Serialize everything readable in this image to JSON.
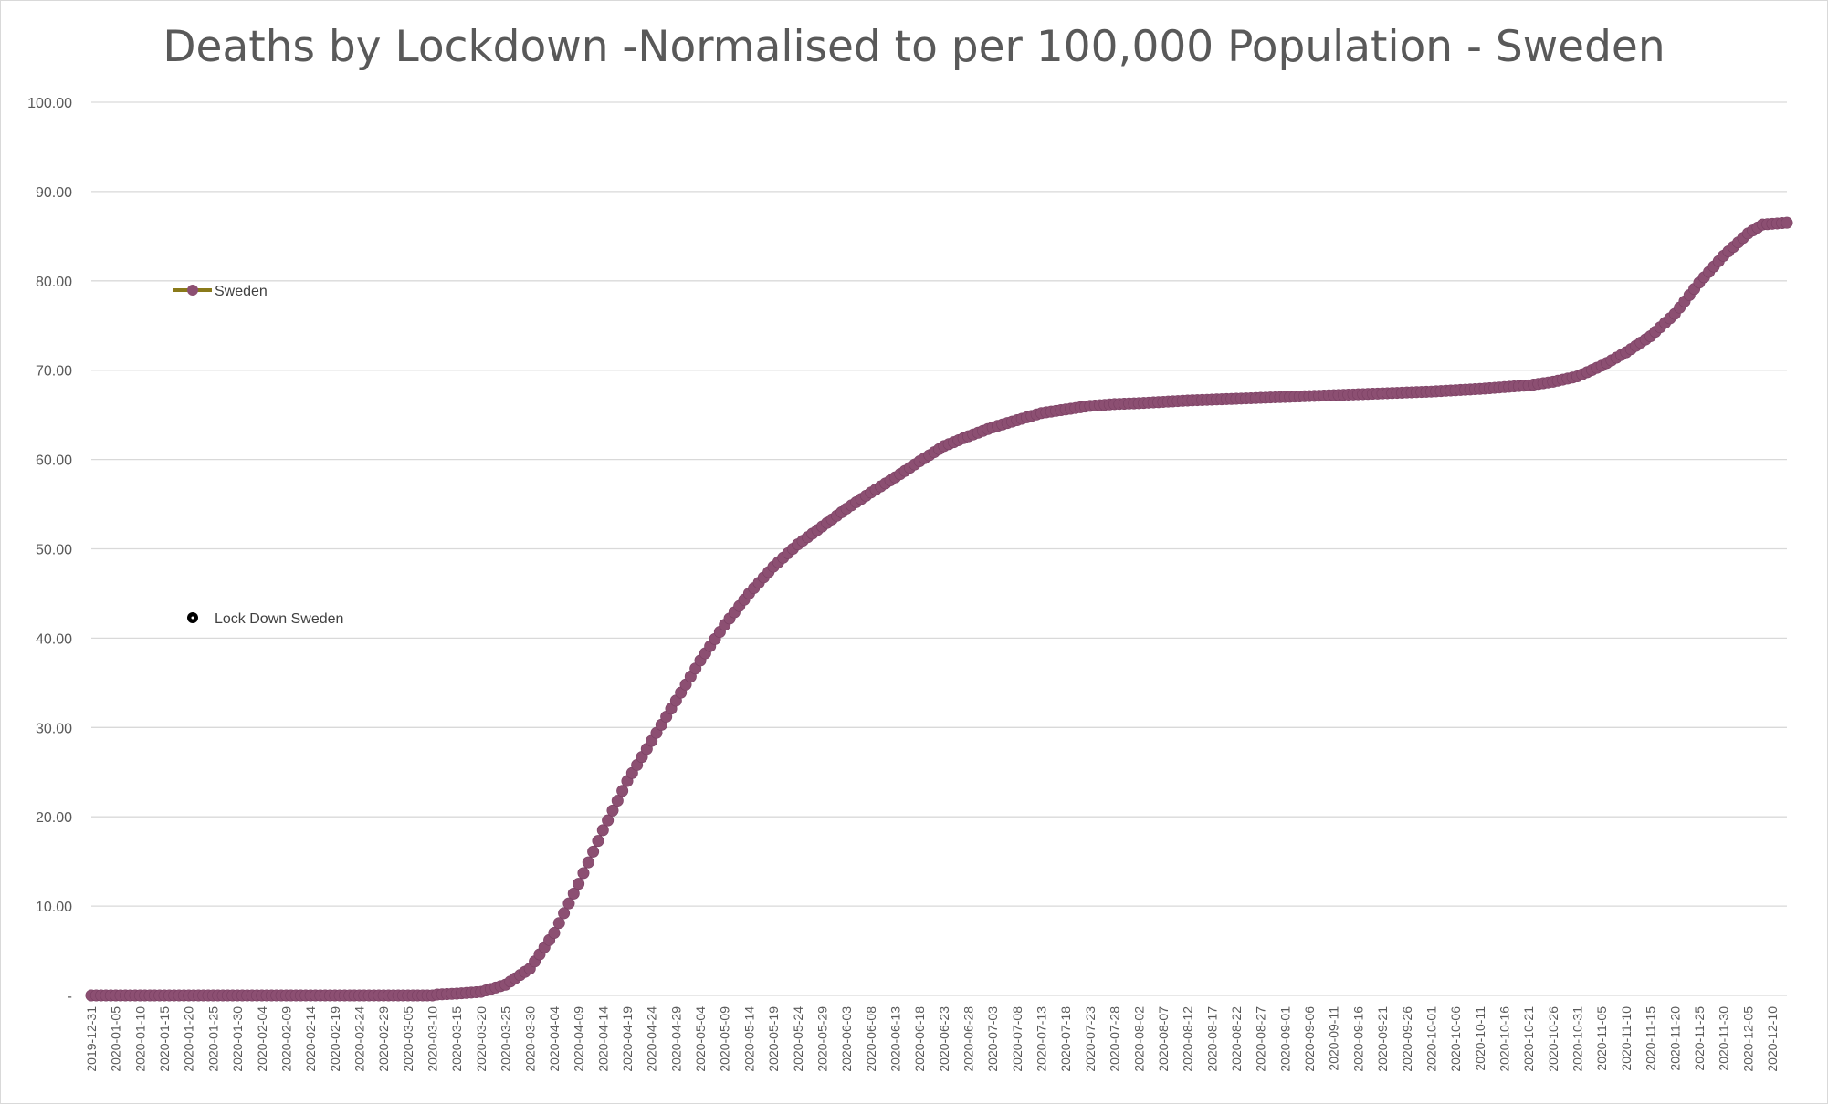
{
  "colors": {
    "series_marker": "#8c4f72",
    "legend_line": "#8a7a1a",
    "lockdown_marker": "#000000",
    "gridline": "#d9d9d9",
    "text": "#595959"
  },
  "chart_data": {
    "type": "line",
    "title": "Deaths by Lockdown -Normalised to per 100,000 Population - Sweden",
    "xlabel": "",
    "ylabel": "",
    "ylim": [
      0,
      100
    ],
    "y_ticks": [
      {
        "value": 0,
        "label": "-"
      },
      {
        "value": 10,
        "label": "10.00"
      },
      {
        "value": 20,
        "label": "20.00"
      },
      {
        "value": 30,
        "label": "30.00"
      },
      {
        "value": 40,
        "label": "40.00"
      },
      {
        "value": 50,
        "label": "50.00"
      },
      {
        "value": 60,
        "label": "60.00"
      },
      {
        "value": 70,
        "label": "70.00"
      },
      {
        "value": 80,
        "label": "80.00"
      },
      {
        "value": 90,
        "label": "90.00"
      },
      {
        "value": 100,
        "label": "100.00"
      }
    ],
    "grid": true,
    "x_start": "2019-12-31",
    "x_end": "2020-12-13",
    "x_tick_labels": [
      "2019-12-31",
      "2020-01-05",
      "2020-01-10",
      "2020-01-15",
      "2020-01-20",
      "2020-01-25",
      "2020-01-30",
      "2020-02-04",
      "2020-02-09",
      "2020-02-14",
      "2020-02-19",
      "2020-02-24",
      "2020-02-29",
      "2020-03-05",
      "2020-03-10",
      "2020-03-15",
      "2020-03-20",
      "2020-03-25",
      "2020-03-30",
      "2020-04-04",
      "2020-04-09",
      "2020-04-14",
      "2020-04-19",
      "2020-04-24",
      "2020-04-29",
      "2020-05-04",
      "2020-05-09",
      "2020-05-14",
      "2020-05-19",
      "2020-05-24",
      "2020-05-29",
      "2020-06-03",
      "2020-06-08",
      "2020-06-13",
      "2020-06-18",
      "2020-06-23",
      "2020-06-28",
      "2020-07-03",
      "2020-07-08",
      "2020-07-13",
      "2020-07-18",
      "2020-07-23",
      "2020-07-28",
      "2020-08-02",
      "2020-08-07",
      "2020-08-12",
      "2020-08-17",
      "2020-08-22",
      "2020-08-27",
      "2020-09-01",
      "2020-09-06",
      "2020-09-11",
      "2020-09-16",
      "2020-09-21",
      "2020-09-26",
      "2020-10-01",
      "2020-10-06",
      "2020-10-11",
      "2020-10-16",
      "2020-10-21",
      "2020-10-26",
      "2020-10-31",
      "2020-11-05",
      "2020-11-10",
      "2020-11-15",
      "2020-11-20",
      "2020-11-25",
      "2020-11-30",
      "2020-12-05",
      "2020-12-10"
    ],
    "series": [
      {
        "name": "Sweden",
        "points": [
          {
            "x": "2019-12-31",
            "y": 0
          },
          {
            "x": "2020-03-10",
            "y": 0
          },
          {
            "x": "2020-03-11",
            "y": 0.1
          },
          {
            "x": "2020-03-15",
            "y": 0.2
          },
          {
            "x": "2020-03-20",
            "y": 0.4
          },
          {
            "x": "2020-03-25",
            "y": 1.2
          },
          {
            "x": "2020-03-30",
            "y": 3.0
          },
          {
            "x": "2020-04-04",
            "y": 7.0
          },
          {
            "x": "2020-04-09",
            "y": 12.5
          },
          {
            "x": "2020-04-14",
            "y": 18.5
          },
          {
            "x": "2020-04-19",
            "y": 24.0
          },
          {
            "x": "2020-04-24",
            "y": 28.5
          },
          {
            "x": "2020-04-29",
            "y": 33.0
          },
          {
            "x": "2020-05-04",
            "y": 37.5
          },
          {
            "x": "2020-05-09",
            "y": 41.5
          },
          {
            "x": "2020-05-14",
            "y": 45.0
          },
          {
            "x": "2020-05-19",
            "y": 48.0
          },
          {
            "x": "2020-05-24",
            "y": 50.5
          },
          {
            "x": "2020-05-29",
            "y": 52.5
          },
          {
            "x": "2020-06-03",
            "y": 54.5
          },
          {
            "x": "2020-06-08",
            "y": 56.3
          },
          {
            "x": "2020-06-13",
            "y": 58.0
          },
          {
            "x": "2020-06-18",
            "y": 59.8
          },
          {
            "x": "2020-06-23",
            "y": 61.5
          },
          {
            "x": "2020-06-28",
            "y": 62.6
          },
          {
            "x": "2020-07-03",
            "y": 63.6
          },
          {
            "x": "2020-07-08",
            "y": 64.4
          },
          {
            "x": "2020-07-13",
            "y": 65.2
          },
          {
            "x": "2020-07-18",
            "y": 65.6
          },
          {
            "x": "2020-07-23",
            "y": 66.0
          },
          {
            "x": "2020-07-28",
            "y": 66.2
          },
          {
            "x": "2020-08-02",
            "y": 66.3
          },
          {
            "x": "2020-08-12",
            "y": 66.6
          },
          {
            "x": "2020-08-22",
            "y": 66.8
          },
          {
            "x": "2020-09-01",
            "y": 67.0
          },
          {
            "x": "2020-09-11",
            "y": 67.2
          },
          {
            "x": "2020-09-21",
            "y": 67.4
          },
          {
            "x": "2020-10-01",
            "y": 67.6
          },
          {
            "x": "2020-10-11",
            "y": 67.9
          },
          {
            "x": "2020-10-21",
            "y": 68.3
          },
          {
            "x": "2020-10-26",
            "y": 68.7
          },
          {
            "x": "2020-10-31",
            "y": 69.3
          },
          {
            "x": "2020-11-05",
            "y": 70.5
          },
          {
            "x": "2020-11-10",
            "y": 72.0
          },
          {
            "x": "2020-11-15",
            "y": 73.8
          },
          {
            "x": "2020-11-20",
            "y": 76.3
          },
          {
            "x": "2020-11-25",
            "y": 79.8
          },
          {
            "x": "2020-11-30",
            "y": 82.8
          },
          {
            "x": "2020-12-05",
            "y": 85.3
          },
          {
            "x": "2020-12-08",
            "y": 86.3
          },
          {
            "x": "2020-12-13",
            "y": 86.5
          }
        ]
      },
      {
        "name": "Lock Down Sweden",
        "points": []
      }
    ],
    "legend": {
      "placement": "left",
      "entries": [
        {
          "name": "Sweden",
          "marker": "circle-line"
        },
        {
          "name": "Lock Down Sweden",
          "marker": "dot"
        }
      ]
    }
  }
}
